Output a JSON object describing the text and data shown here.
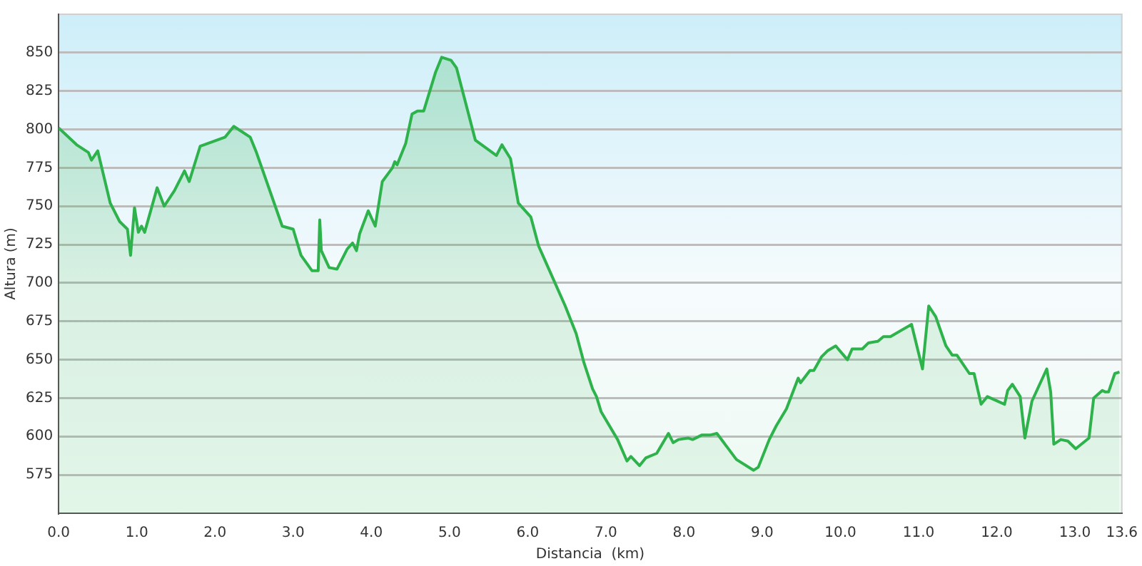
{
  "chart_data": {
    "type": "area",
    "xlabel": "Distancia  (km)",
    "ylabel": "Altura (m)",
    "xlim": [
      0,
      13.6
    ],
    "ylim": [
      550,
      875
    ],
    "xticks": [
      {
        "value": 0,
        "label": "0.0"
      },
      {
        "value": 1,
        "label": "1.0"
      },
      {
        "value": 2,
        "label": "2.0"
      },
      {
        "value": 3,
        "label": "3.0"
      },
      {
        "value": 4,
        "label": "4.0"
      },
      {
        "value": 5,
        "label": "5.0"
      },
      {
        "value": 6,
        "label": "6.0"
      },
      {
        "value": 7,
        "label": "7.0"
      },
      {
        "value": 8,
        "label": "8.0"
      },
      {
        "value": 9,
        "label": "9.0"
      },
      {
        "value": 10,
        "label": "10.0"
      },
      {
        "value": 11,
        "label": "11.0"
      },
      {
        "value": 12,
        "label": "12.0"
      },
      {
        "value": 13,
        "label": "13.0"
      },
      {
        "value": 13.6,
        "label": "13.6"
      }
    ],
    "yticks": [
      575,
      600,
      625,
      650,
      675,
      700,
      725,
      750,
      775,
      800,
      825,
      850
    ],
    "grid": "y",
    "marker": "none",
    "line_style": "solid",
    "series": [
      {
        "color": "#2eb24b",
        "x": [
          0,
          0.23,
          0.38,
          0.42,
          0.5,
          0.66,
          0.78,
          0.88,
          0.92,
          0.97,
          1.02,
          1.06,
          1.1,
          1.26,
          1.35,
          1.48,
          1.61,
          1.67,
          1.81,
          2.13,
          2.24,
          2.45,
          2.53,
          2.86,
          3.0,
          3.1,
          3.24,
          3.32,
          3.34,
          3.36,
          3.46,
          3.56,
          3.69,
          3.76,
          3.81,
          3.85,
          3.96,
          4.05,
          4.14,
          4.27,
          4.3,
          4.33,
          4.44,
          4.52,
          4.59,
          4.67,
          4.82,
          4.9,
          5.02,
          5.09,
          5.33,
          5.6,
          5.67,
          5.78,
          5.88,
          6.04,
          6.14,
          6.48,
          6.62,
          6.72,
          6.83,
          6.88,
          6.94,
          7.15,
          7.27,
          7.32,
          7.43,
          7.51,
          7.65,
          7.8,
          7.86,
          7.93,
          8.05,
          8.11,
          8.23,
          8.34,
          8.42,
          8.67,
          8.89,
          8.95,
          9.09,
          9.18,
          9.31,
          9.46,
          9.49,
          9.61,
          9.66,
          9.76,
          9.84,
          9.94,
          10.09,
          10.15,
          10.28,
          10.36,
          10.48,
          10.55,
          10.64,
          10.91,
          11.05,
          11.13,
          11.22,
          11.35,
          11.43,
          11.49,
          11.65,
          11.71,
          11.8,
          11.88,
          12.1,
          12.14,
          12.2,
          12.3,
          12.36,
          12.45,
          12.64,
          12.69,
          12.73,
          12.82,
          12.91,
          13.01,
          13.18,
          13.24,
          13.35,
          13.39,
          13.43,
          13.51,
          13.57
        ],
        "values": [
          801,
          790,
          785,
          780,
          786,
          752,
          740,
          735,
          718,
          749,
          733,
          737,
          733,
          762,
          750,
          760,
          773,
          766,
          789,
          795,
          802,
          795,
          785,
          737,
          735,
          718,
          708,
          708,
          741,
          721,
          710,
          709,
          722,
          726,
          721,
          732,
          747,
          737,
          766,
          775,
          779,
          777,
          791,
          810,
          812,
          812,
          837,
          847,
          845,
          840,
          793,
          783,
          790,
          781,
          752,
          743,
          724,
          685,
          667,
          648,
          631,
          626,
          616,
          598,
          584,
          587,
          581,
          586,
          589,
          602,
          596,
          598,
          599,
          598,
          601,
          601,
          602,
          585,
          578,
          580,
          598,
          607,
          618,
          638,
          635,
          643,
          643,
          652,
          656,
          659,
          650,
          657,
          657,
          661,
          662,
          665,
          665,
          673,
          644,
          685,
          678,
          659,
          653,
          653,
          641,
          641,
          621,
          626,
          621,
          630,
          634,
          626,
          599,
          623,
          644,
          629,
          595,
          598,
          597,
          592,
          599,
          625,
          630,
          629,
          629,
          641,
          642
        ]
      }
    ]
  }
}
